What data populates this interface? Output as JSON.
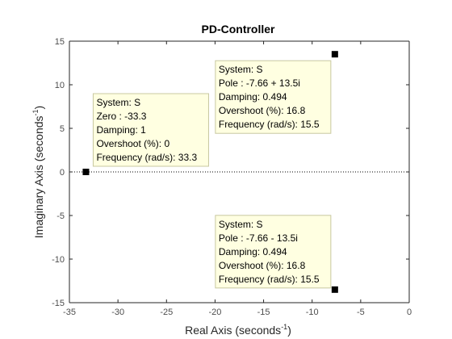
{
  "chart_data": {
    "type": "scatter",
    "title": "PD-Controller",
    "xlabel": "Real Axis (seconds",
    "xlabel_sup": "-1",
    "xlabel_close": ")",
    "ylabel": "Imaginary Axis (seconds",
    "ylabel_sup": "-1",
    "ylabel_close": ")",
    "xlim": [
      -35,
      0
    ],
    "ylim": [
      -15,
      15
    ],
    "xticks": [
      -35,
      -30,
      -25,
      -20,
      -15,
      -10,
      -5,
      0
    ],
    "yticks": [
      -15,
      -10,
      -5,
      0,
      5,
      10,
      15
    ],
    "grid": false,
    "zero_line": true,
    "points": [
      {
        "x": -33.3,
        "y": 0,
        "marker": "square",
        "color": "#000000"
      },
      {
        "x": -7.66,
        "y": 13.5,
        "marker": "square",
        "color": "#000000"
      },
      {
        "x": -7.66,
        "y": -13.5,
        "marker": "square",
        "color": "#000000"
      }
    ],
    "datatips": [
      {
        "anchor_point": 0,
        "lines": [
          "System: S",
          "Zero : -33.3",
          "Damping: 1",
          "Overshoot (%): 0",
          "Frequency (rad/s): 33.3"
        ]
      },
      {
        "anchor_point": 1,
        "lines": [
          "System: S",
          "Pole : -7.66 + 13.5i",
          "Damping: 0.494",
          "Overshoot (%): 16.8",
          "Frequency (rad/s): 15.5"
        ]
      },
      {
        "anchor_point": 2,
        "lines": [
          "System: S",
          "Pole : -7.66 - 13.5i",
          "Damping: 0.494",
          "Overshoot (%): 16.8",
          "Frequency (rad/s): 15.5"
        ]
      }
    ],
    "colors": {
      "tip_bg": "#ffffe1",
      "tip_border": "#c8c8a0",
      "axis": "#262626"
    }
  }
}
